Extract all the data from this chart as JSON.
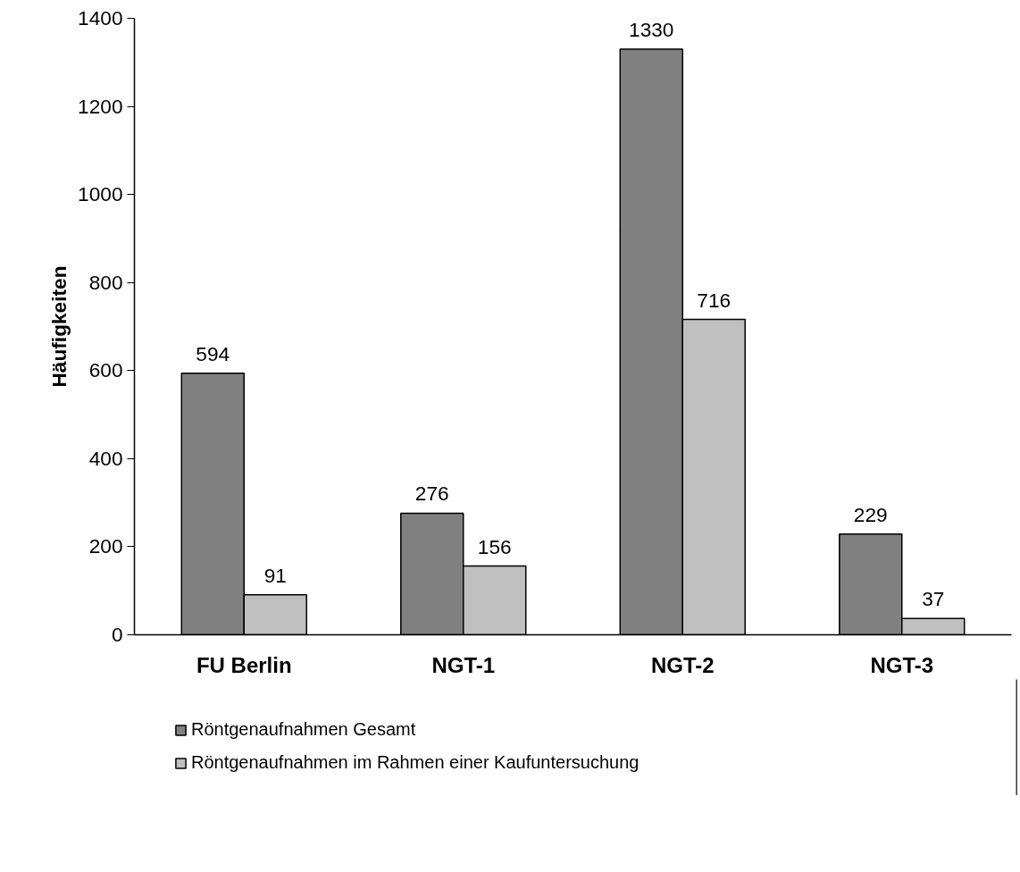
{
  "chart_data": {
    "type": "bar",
    "ylabel": "Häufigkeiten",
    "categories": [
      "FU Berlin",
      "NGT-1",
      "NGT-2",
      "NGT-3"
    ],
    "series": [
      {
        "name": "Röntgenaufnahmen Gesamt",
        "color": "#808080",
        "values": [
          594,
          276,
          1330,
          229
        ]
      },
      {
        "name": "Röntgenaufnahmen im Rahmen einer Kaufuntersuchung",
        "color": "#c0c0c0",
        "values": [
          91,
          156,
          716,
          37
        ]
      }
    ],
    "ylim": [
      0,
      1400
    ],
    "yticks": [
      0,
      200,
      400,
      600,
      800,
      1000,
      1200,
      1400
    ],
    "data_labels": true,
    "grid": false,
    "legend": "bottom"
  }
}
